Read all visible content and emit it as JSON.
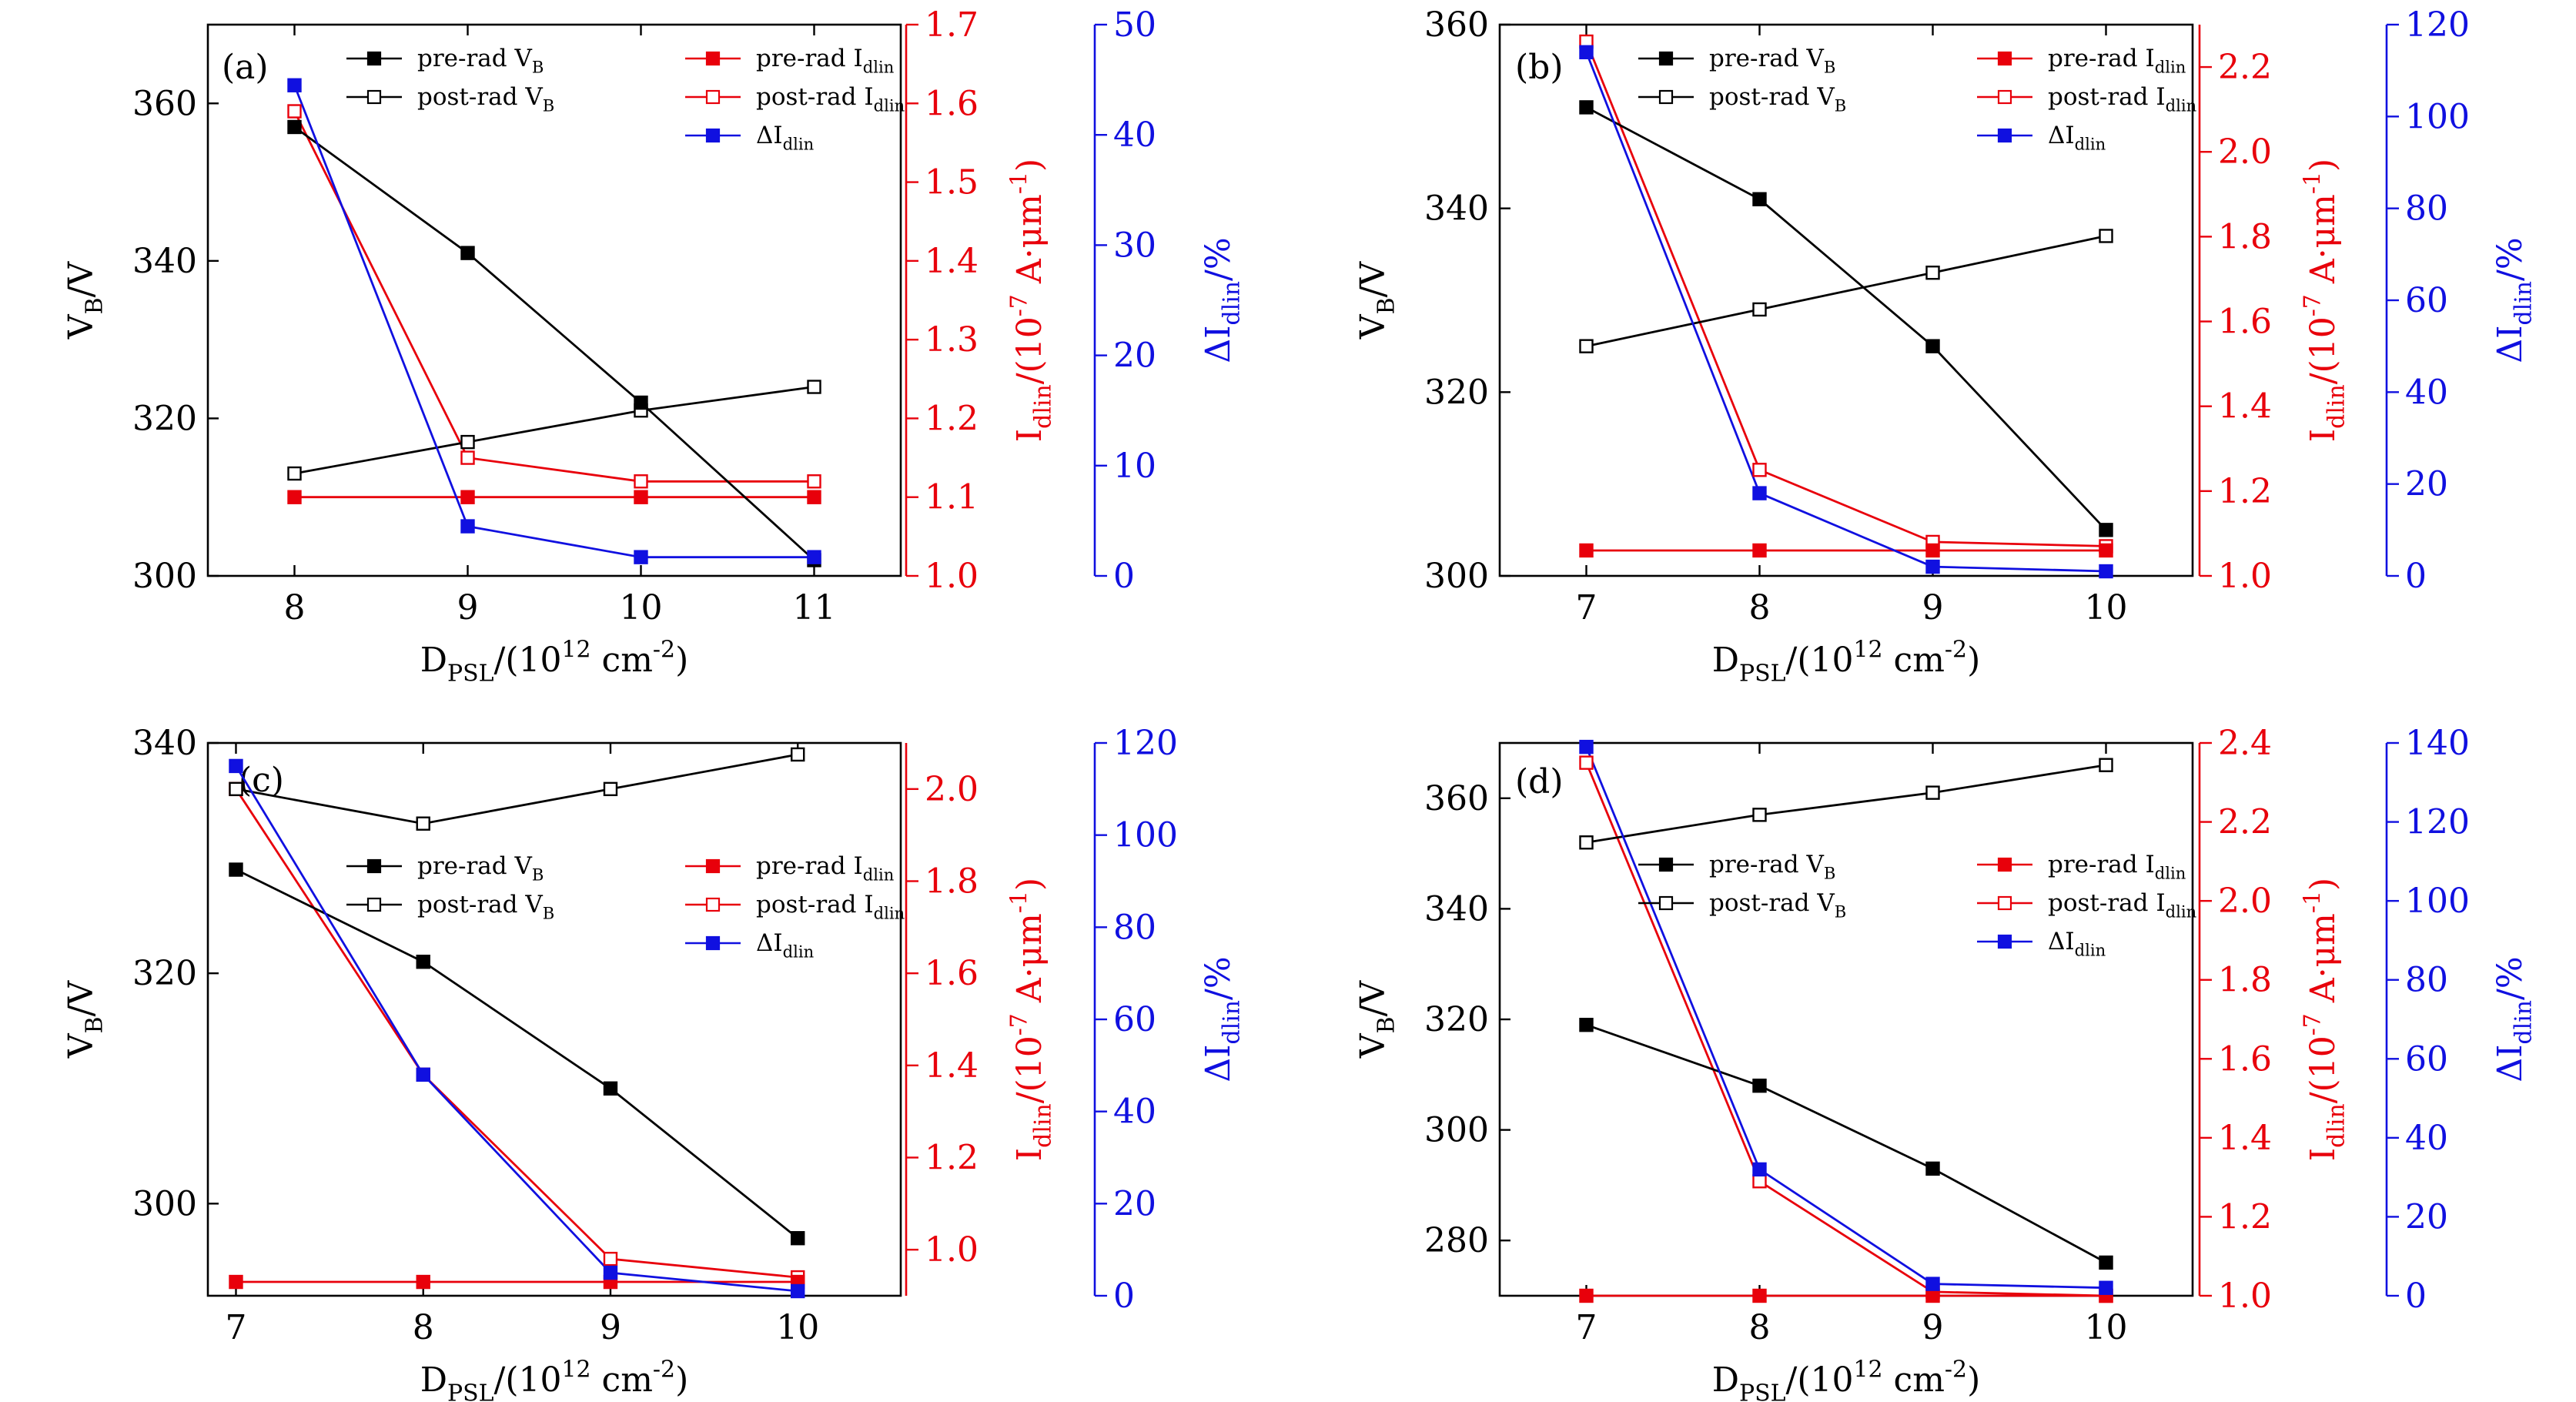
{
  "colors": {
    "black": "#000000",
    "red": "#e8000b",
    "blue": "#1010e0"
  },
  "legend": {
    "pre_vb": "pre-rad V_B",
    "post_vb": "post-rad V_B",
    "pre_id": "pre-rad I_dlin",
    "post_id": "post-rad I_dlin",
    "delta": "ΔI_dlin"
  },
  "axis_titles": {
    "x": "D_PSL/(10^12 cm^-2)",
    "y_left": "V_B/V",
    "y_red": "I_dlin/(10^-7 A·μm^-1)",
    "y_blue": "ΔI_dlin/%"
  },
  "chart_data": [
    {
      "panel": "(a)",
      "type": "line",
      "x": [
        8,
        9,
        10,
        11
      ],
      "xlim": [
        7.5,
        11.5
      ],
      "ylim_left": [
        300,
        370
      ],
      "ylim_red": [
        1.0,
        1.7
      ],
      "ylim_blue": [
        0,
        50
      ],
      "yticks_left": [
        300,
        320,
        340,
        360
      ],
      "yticks_red": [
        1.0,
        1.1,
        1.2,
        1.3,
        1.4,
        1.5,
        1.6,
        1.7
      ],
      "yticks_blue": [
        0,
        10,
        20,
        30,
        40,
        50
      ],
      "legend_pos": "top-right",
      "series": [
        {
          "name": "pre-rad V_B",
          "axis": "left",
          "color": "black",
          "marker": "filled",
          "values": [
            357,
            341,
            322,
            302
          ]
        },
        {
          "name": "post-rad V_B",
          "axis": "left",
          "color": "black",
          "marker": "open",
          "values": [
            313,
            317,
            321,
            324
          ]
        },
        {
          "name": "pre-rad I_dlin",
          "axis": "red",
          "color": "red",
          "marker": "filled",
          "values": [
            1.1,
            1.1,
            1.1,
            1.1
          ]
        },
        {
          "name": "post-rad I_dlin",
          "axis": "red",
          "color": "red",
          "marker": "open",
          "values": [
            1.59,
            1.15,
            1.12,
            1.12
          ]
        },
        {
          "name": "ΔI_dlin",
          "axis": "blue",
          "color": "blue",
          "marker": "filled",
          "values": [
            44.5,
            4.5,
            1.7,
            1.7
          ]
        }
      ]
    },
    {
      "panel": "(b)",
      "type": "line",
      "x": [
        7,
        8,
        9,
        10
      ],
      "xlim": [
        6.5,
        10.5
      ],
      "ylim_left": [
        300,
        360
      ],
      "ylim_red": [
        1.0,
        2.3
      ],
      "ylim_blue": [
        0,
        120
      ],
      "yticks_left": [
        300,
        320,
        340,
        360
      ],
      "yticks_red": [
        1.0,
        1.2,
        1.4,
        1.6,
        1.8,
        2.0,
        2.2
      ],
      "yticks_blue": [
        0,
        20,
        40,
        60,
        80,
        100,
        120
      ],
      "legend_pos": "top-right",
      "series": [
        {
          "name": "pre-rad V_B",
          "axis": "left",
          "color": "black",
          "marker": "filled",
          "values": [
            351,
            341,
            325,
            305
          ]
        },
        {
          "name": "post-rad V_B",
          "axis": "left",
          "color": "black",
          "marker": "open",
          "values": [
            325,
            329,
            333,
            337
          ]
        },
        {
          "name": "pre-rad I_dlin",
          "axis": "red",
          "color": "red",
          "marker": "filled",
          "values": [
            1.06,
            1.06,
            1.06,
            1.06
          ]
        },
        {
          "name": "post-rad I_dlin",
          "axis": "red",
          "color": "red",
          "marker": "open",
          "values": [
            2.26,
            1.25,
            1.08,
            1.07
          ]
        },
        {
          "name": "ΔI_dlin",
          "axis": "blue",
          "color": "blue",
          "marker": "filled",
          "values": [
            114,
            18,
            2,
            1
          ]
        }
      ]
    },
    {
      "panel": "(c)",
      "type": "line",
      "x": [
        7,
        8,
        9,
        10
      ],
      "xlim": [
        6.85,
        10.55
      ],
      "ylim_left": [
        292,
        340
      ],
      "ylim_red": [
        0.9,
        2.1
      ],
      "ylim_blue": [
        0,
        120
      ],
      "yticks_left": [
        300,
        320,
        340
      ],
      "yticks_red": [
        1.0,
        1.2,
        1.4,
        1.6,
        1.8,
        2.0
      ],
      "yticks_blue": [
        0,
        20,
        40,
        60,
        80,
        100,
        120
      ],
      "legend_pos": "center-right",
      "series": [
        {
          "name": "pre-rad V_B",
          "axis": "left",
          "color": "black",
          "marker": "filled",
          "values": [
            329,
            321,
            310,
            297
          ]
        },
        {
          "name": "post-rad V_B",
          "axis": "left",
          "color": "black",
          "marker": "open",
          "values": [
            336,
            333,
            336,
            339
          ]
        },
        {
          "name": "pre-rad I_dlin",
          "axis": "red",
          "color": "red",
          "marker": "filled",
          "values": [
            0.93,
            0.93,
            0.93,
            0.93
          ]
        },
        {
          "name": "post-rad I_dlin",
          "axis": "red",
          "color": "red",
          "marker": "open",
          "values": [
            2.0,
            1.38,
            0.98,
            0.94
          ]
        },
        {
          "name": "ΔI_dlin",
          "axis": "blue",
          "color": "blue",
          "marker": "filled",
          "values": [
            115,
            48,
            5,
            1
          ]
        }
      ]
    },
    {
      "panel": "(d)",
      "type": "line",
      "x": [
        7,
        8,
        9,
        10
      ],
      "xlim": [
        6.5,
        10.5
      ],
      "ylim_left": [
        270,
        370
      ],
      "ylim_red": [
        1.0,
        2.4
      ],
      "ylim_blue": [
        0,
        140
      ],
      "yticks_left": [
        280,
        300,
        320,
        340,
        360
      ],
      "yticks_red": [
        1.0,
        1.2,
        1.4,
        1.6,
        1.8,
        2.0,
        2.2,
        2.4
      ],
      "yticks_blue": [
        0,
        20,
        40,
        60,
        80,
        100,
        120,
        140
      ],
      "legend_pos": "center-right",
      "series": [
        {
          "name": "pre-rad V_B",
          "axis": "left",
          "color": "black",
          "marker": "filled",
          "values": [
            319,
            308,
            293,
            276
          ]
        },
        {
          "name": "post-rad V_B",
          "axis": "left",
          "color": "black",
          "marker": "open",
          "values": [
            352,
            357,
            361,
            366
          ]
        },
        {
          "name": "pre-rad I_dlin",
          "axis": "red",
          "color": "red",
          "marker": "filled",
          "values": [
            1.0,
            1.0,
            1.0,
            1.0
          ]
        },
        {
          "name": "post-rad I_dlin",
          "axis": "red",
          "color": "red",
          "marker": "open",
          "values": [
            2.35,
            1.29,
            1.01,
            1.0
          ]
        },
        {
          "name": "ΔI_dlin",
          "axis": "blue",
          "color": "blue",
          "marker": "filled",
          "values": [
            139,
            32,
            3,
            2
          ]
        }
      ]
    }
  ]
}
